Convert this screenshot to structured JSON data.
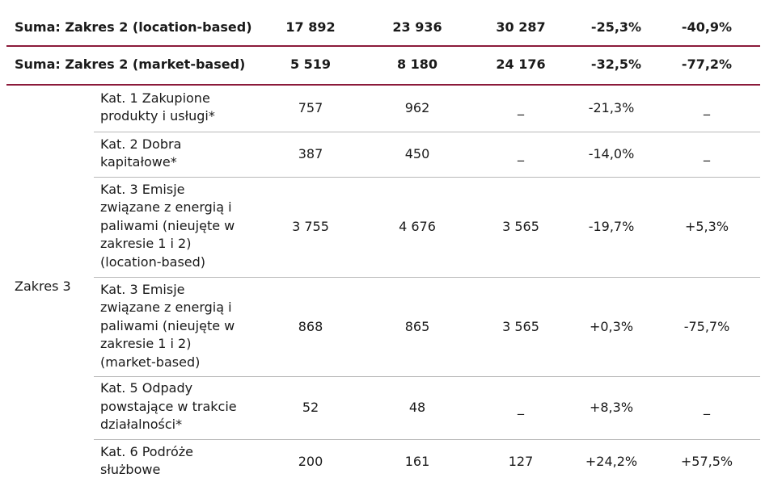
{
  "rows_sum": [
    {
      "label": "Suma: Zakres 2  (location-based)",
      "v1": "17 892",
      "v2": "23 936",
      "v3": "30 287",
      "c1": "-25,3%",
      "c2": "-40,9%"
    },
    {
      "label": "Suma: Zakres 2   (market-based)",
      "v1": "5 519",
      "v2": "8 180",
      "v3": "24 176",
      "c1": "-32,5%",
      "c2": "-77,2%"
    }
  ],
  "scope3": {
    "label": "Zakres 3",
    "rows": [
      {
        "name": "Kat. 1 Zakupione\nprodukty i usługi*",
        "v1": "757",
        "v2": "962",
        "v3": "_",
        "c1": "-21,3%",
        "c2": "_"
      },
      {
        "name": "Kat. 2 Dobra\nkapitałowe*",
        "v1": "387",
        "v2": "450",
        "v3": "_",
        "c1": "-14,0%",
        "c2": "_"
      },
      {
        "name": "Kat. 3 Emisje\nzwiązane z energią i\npaliwami (nieujęte w\nzakresie 1 i 2)\n(location-based)",
        "v1": "3 755",
        "v2": "4 676",
        "v3": "3 565",
        "c1": "-19,7%",
        "c2": "+5,3%"
      },
      {
        "name": "Kat. 3 Emisje\nzwiązane z energią i\npaliwami (nieujęte w\nzakresie 1 i 2)\n(market-based)",
        "v1": "868",
        "v2": "865",
        "v3": "3 565",
        "c1": "+0,3%",
        "c2": "-75,7%"
      },
      {
        "name": "Kat. 5 Odpady\npowstające w trakcie\ndziałalności*",
        "v1": "52",
        "v2": "48",
        "v3": "_",
        "c1": "+8,3%",
        "c2": "_"
      },
      {
        "name": "Kat. 6 Podróże\nsłużbowe",
        "v1": "200",
        "v2": "161",
        "v3": "127",
        "c1": "+24,2%",
        "c2": "+57,5%"
      }
    ]
  }
}
